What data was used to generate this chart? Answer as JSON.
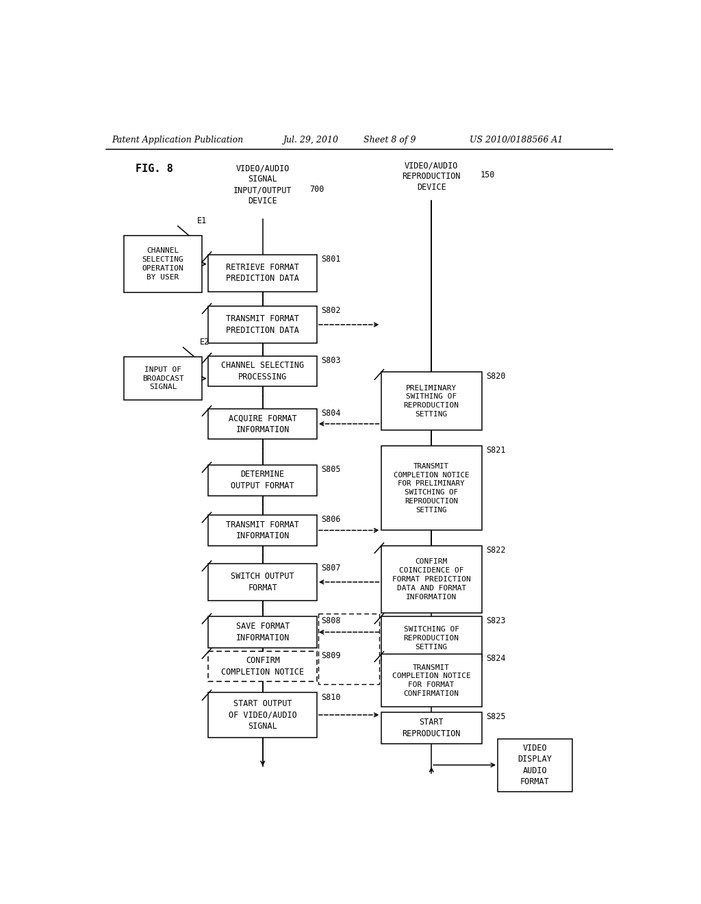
{
  "bg_color": "#ffffff",
  "header_left": "Patent Application Publication",
  "header_mid": "Jul. 29, 2010  Sheet 8 of 9",
  "header_right": "US 2010/0188566 A1",
  "fig_label": "FIG. 8",
  "col_left_title": "VIDEO/AUDIO\nSIGNAL\nINPUT/OUTPUT\nDEVICE",
  "col_left_num": "700",
  "col_right_title": "VIDEO/AUDIO\nREPRODUCTION\nDEVICE",
  "col_right_num": "150",
  "E1_label": "CHANNEL\nSELECTING\nOPERATION\nBY USER",
  "E2_label": "INPUT OF\nBROADCAST\nSIGNAL",
  "left_boxes": [
    {
      "step": "S801",
      "text": "RETRIEVE FORMAT\nPREDICTION DATA"
    },
    {
      "step": "S802",
      "text": "TRANSMIT FORMAT\nPREDICTION DATA"
    },
    {
      "step": "S803",
      "text": "CHANNEL SELECTING\nPROCESSING"
    },
    {
      "step": "S804",
      "text": "ACQUIRE FORMAT\nINFORMATION"
    },
    {
      "step": "S805",
      "text": "DETERMINE\nOUTPUT FORMAT"
    },
    {
      "step": "S806",
      "text": "TRANSMIT FORMAT\nINFORMATION"
    },
    {
      "step": "S807",
      "text": "SWITCH OUTPUT\nFORMAT"
    },
    {
      "step": "S808",
      "text": "SAVE FORMAT\nINFORMATION"
    },
    {
      "step": "S809",
      "text": "CONFIRM\nCOMPLETION NOTICE"
    },
    {
      "step": "S810",
      "text": "START OUTPUT\nOF VIDEO/AUDIO\nSIGNAL"
    }
  ],
  "right_boxes": [
    {
      "step": "S820",
      "text": "PRELIMINARY\nSWITHING OF\nREPRODUCTION\nSETTING"
    },
    {
      "step": "S821",
      "text": "TRANSMIT\nCOMPLETION NOTICE\nFOR PRELIMINARY\nSWITCHING OF\nREPRODUCTION\nSETTING"
    },
    {
      "step": "S822",
      "text": "CONFIRM\nCOINCIDENCE OF\nFORMAT PREDICTION\nDATA AND FORMAT\nINFORMATION"
    },
    {
      "step": "S823",
      "text": "SWITCHING OF\nREPRODUCTION\nSETTING"
    },
    {
      "step": "S824",
      "text": "TRANSMIT\nCOMPLETION NOTICE\nFOR FORMAT\nCONFIRMATION"
    },
    {
      "step": "S825",
      "text": "START\nREPRODUCTION"
    }
  ],
  "bottom_label": "VIDEO\nDISPLAY\nAUDIO\nFORMAT"
}
